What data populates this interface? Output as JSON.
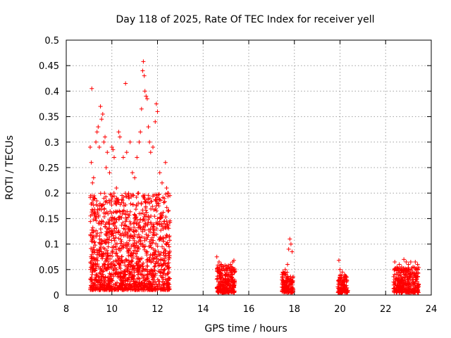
{
  "chart_data": {
    "type": "scatter",
    "title": "Day 118 of 2025, Rate Of TEC Index for receiver yell",
    "xlabel": "GPS time / hours",
    "ylabel": "ROTI / TECUs",
    "xlim": [
      8,
      24
    ],
    "ylim": [
      0,
      0.5
    ],
    "xticks": [
      8,
      10,
      12,
      14,
      16,
      18,
      20,
      22,
      24
    ],
    "xtick_labels": [
      "8",
      "10",
      "12",
      "14",
      "16",
      "18",
      "20",
      "22",
      "24"
    ],
    "yticks": [
      0,
      0.05,
      0.1,
      0.15,
      0.2,
      0.25,
      0.3,
      0.35,
      0.4,
      0.45,
      0.5
    ],
    "ytick_labels": [
      "0",
      "0.05",
      "0.1",
      "0.15",
      "0.2",
      "0.25",
      "0.3",
      "0.35",
      "0.4",
      "0.45",
      "0.5"
    ],
    "grid": true,
    "marker": "+",
    "color": "#ff0000",
    "series": [
      {
        "name": "ROTI",
        "points": [
          [
            9.05,
            0.29
          ],
          [
            9.1,
            0.26
          ],
          [
            9.12,
            0.405
          ],
          [
            9.15,
            0.22
          ],
          [
            9.2,
            0.23
          ],
          [
            9.25,
            0.19
          ],
          [
            9.3,
            0.3
          ],
          [
            9.35,
            0.32
          ],
          [
            9.4,
            0.33
          ],
          [
            9.45,
            0.29
          ],
          [
            9.5,
            0.37
          ],
          [
            9.55,
            0.345
          ],
          [
            9.6,
            0.355
          ],
          [
            9.65,
            0.3
          ],
          [
            9.7,
            0.31
          ],
          [
            9.75,
            0.25
          ],
          [
            9.8,
            0.28
          ],
          [
            9.9,
            0.24
          ],
          [
            10.0,
            0.29
          ],
          [
            10.05,
            0.285
          ],
          [
            10.1,
            0.27
          ],
          [
            10.2,
            0.21
          ],
          [
            10.3,
            0.32
          ],
          [
            10.35,
            0.31
          ],
          [
            10.5,
            0.27
          ],
          [
            10.6,
            0.415
          ],
          [
            10.65,
            0.28
          ],
          [
            10.8,
            0.3
          ],
          [
            10.9,
            0.24
          ],
          [
            11.0,
            0.23
          ],
          [
            11.1,
            0.27
          ],
          [
            11.2,
            0.3
          ],
          [
            11.25,
            0.32
          ],
          [
            11.3,
            0.365
          ],
          [
            11.35,
            0.44
          ],
          [
            11.38,
            0.458
          ],
          [
            11.42,
            0.43
          ],
          [
            11.45,
            0.4
          ],
          [
            11.5,
            0.39
          ],
          [
            11.55,
            0.385
          ],
          [
            11.6,
            0.33
          ],
          [
            11.65,
            0.3
          ],
          [
            11.7,
            0.28
          ],
          [
            11.8,
            0.29
          ],
          [
            11.9,
            0.34
          ],
          [
            11.95,
            0.375
          ],
          [
            12.0,
            0.36
          ],
          [
            12.1,
            0.24
          ],
          [
            12.2,
            0.22
          ],
          [
            12.35,
            0.26
          ],
          [
            12.4,
            0.21
          ],
          [
            12.45,
            0.2
          ],
          [
            14.6,
            0.075
          ],
          [
            14.7,
            0.065
          ],
          [
            14.8,
            0.06
          ],
          [
            14.9,
            0.055
          ],
          [
            15.0,
            0.05
          ],
          [
            15.1,
            0.055
          ],
          [
            15.2,
            0.06
          ],
          [
            15.3,
            0.065
          ],
          [
            15.35,
            0.068
          ],
          [
            17.5,
            0.045
          ],
          [
            17.6,
            0.05
          ],
          [
            17.7,
            0.06
          ],
          [
            17.75,
            0.09
          ],
          [
            17.8,
            0.11
          ],
          [
            17.85,
            0.1
          ],
          [
            17.9,
            0.085
          ],
          [
            19.95,
            0.068
          ],
          [
            20.0,
            0.05
          ],
          [
            20.1,
            0.045
          ],
          [
            20.2,
            0.04
          ],
          [
            20.25,
            0.035
          ],
          [
            22.4,
            0.065
          ],
          [
            22.5,
            0.055
          ],
          [
            22.6,
            0.06
          ],
          [
            22.7,
            0.055
          ],
          [
            22.8,
            0.07
          ],
          [
            22.9,
            0.065
          ],
          [
            23.0,
            0.06
          ],
          [
            23.1,
            0.065
          ],
          [
            23.2,
            0.055
          ],
          [
            23.3,
            0.065
          ],
          [
            23.4,
            0.06
          ]
        ],
        "dense_clusters": [
          {
            "x_range": [
              9.05,
              12.55
            ],
            "y_range": [
              0.01,
              0.2
            ],
            "count": 1400
          },
          {
            "x_range": [
              14.6,
              15.4
            ],
            "y_range": [
              0.005,
              0.06
            ],
            "count": 260
          },
          {
            "x_range": [
              17.45,
              17.95
            ],
            "y_range": [
              0.005,
              0.045
            ],
            "count": 150
          },
          {
            "x_range": [
              19.9,
              20.35
            ],
            "y_range": [
              0.005,
              0.04
            ],
            "count": 120
          },
          {
            "x_range": [
              22.35,
              23.45
            ],
            "y_range": [
              0.005,
              0.055
            ],
            "count": 330
          }
        ]
      }
    ]
  }
}
